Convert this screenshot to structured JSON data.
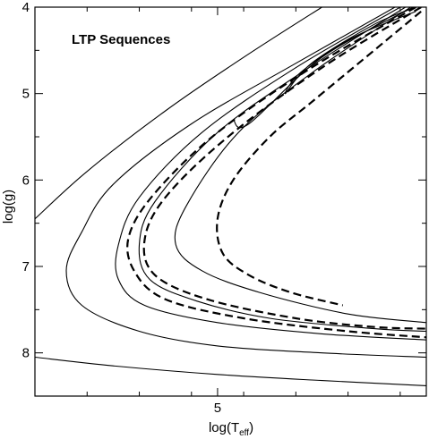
{
  "chart_data": {
    "type": "line",
    "title": "LTP Sequences",
    "xlabel": "log(T",
    "xlabel_sub": "eff",
    "xlabel_close": ")",
    "ylabel": "log(g)",
    "xlim": [
      4.65,
      5.4
    ],
    "ylim": [
      8.5,
      4.0
    ],
    "y_inverted": true,
    "x_ticks_major": [
      5.0
    ],
    "x_tick_labels": [
      "5"
    ],
    "x_ticks_minor": [
      4.75,
      4.85,
      4.95,
      5.05,
      5.15,
      5.25,
      5.35
    ],
    "y_ticks_major": [
      4,
      5,
      6,
      7,
      8
    ],
    "y_tick_labels": [
      "4",
      "5",
      "6",
      "7",
      "8"
    ],
    "y_ticks_minor": [
      4.5,
      5.5,
      6.5,
      7.5,
      8.5
    ],
    "grid": false,
    "legend": "none",
    "series": [
      {
        "style": "solid",
        "points": [
          [
            4.65,
            6.45
          ],
          [
            4.75,
            5.9
          ],
          [
            4.9,
            5.2
          ],
          [
            5.05,
            4.58
          ],
          [
            5.2,
            4.0
          ]
        ]
      },
      {
        "style": "solid",
        "points": [
          [
            4.65,
            8.05
          ],
          [
            4.8,
            8.15
          ],
          [
            5.0,
            8.25
          ],
          [
            5.2,
            8.32
          ],
          [
            5.4,
            8.38
          ]
        ]
      },
      {
        "style": "solid",
        "points": [
          [
            5.34,
            4.0
          ],
          [
            5.15,
            4.65
          ],
          [
            4.95,
            5.35
          ],
          [
            4.8,
            6.05
          ],
          [
            4.74,
            6.6
          ],
          [
            4.71,
            7.05
          ],
          [
            4.74,
            7.45
          ],
          [
            4.85,
            7.75
          ],
          [
            5.0,
            7.92
          ],
          [
            5.2,
            8.0
          ],
          [
            5.4,
            8.05
          ]
        ]
      },
      {
        "style": "solid",
        "points": [
          [
            5.35,
            4.0
          ],
          [
            5.15,
            4.7
          ],
          [
            4.97,
            5.45
          ],
          [
            4.85,
            6.2
          ],
          [
            4.81,
            6.75
          ],
          [
            4.81,
            7.15
          ],
          [
            4.86,
            7.45
          ],
          [
            5.0,
            7.65
          ],
          [
            5.2,
            7.78
          ],
          [
            5.4,
            7.85
          ]
        ]
      },
      {
        "style": "solid",
        "points": [
          [
            5.36,
            4.0
          ],
          [
            5.17,
            4.72
          ],
          [
            5.0,
            5.45
          ],
          [
            4.88,
            6.25
          ],
          [
            4.85,
            6.75
          ],
          [
            4.87,
            7.15
          ],
          [
            4.96,
            7.4
          ],
          [
            5.1,
            7.6
          ],
          [
            5.3,
            7.72
          ],
          [
            5.4,
            7.75
          ]
        ]
      },
      {
        "style": "solid",
        "points": [
          [
            5.37,
            4.0
          ],
          [
            5.19,
            4.72
          ],
          [
            5.04,
            5.45
          ],
          [
            4.94,
            6.3
          ],
          [
            4.92,
            6.75
          ],
          [
            4.97,
            7.05
          ],
          [
            5.08,
            7.3
          ],
          [
            5.25,
            7.55
          ],
          [
            5.4,
            7.65
          ]
        ]
      },
      {
        "style": "solid",
        "points": [
          [
            5.38,
            4.0
          ],
          [
            5.3,
            4.2
          ],
          [
            5.18,
            4.65
          ],
          [
            5.13,
            5.0
          ],
          [
            5.16,
            4.75
          ],
          [
            5.26,
            4.35
          ],
          [
            5.38,
            4.05
          ]
        ]
      },
      {
        "style": "solid",
        "points": [
          [
            5.375,
            4.0
          ],
          [
            5.2,
            4.58
          ],
          [
            5.06,
            5.35
          ],
          [
            5.03,
            5.3
          ]
        ]
      },
      {
        "style": "dashed",
        "points": [
          [
            5.38,
            4.0
          ],
          [
            5.18,
            4.7
          ],
          [
            5.0,
            5.45
          ],
          [
            4.88,
            6.15
          ],
          [
            4.83,
            6.65
          ],
          [
            4.84,
            7.05
          ],
          [
            4.9,
            7.38
          ],
          [
            5.05,
            7.6
          ],
          [
            5.25,
            7.75
          ],
          [
            5.4,
            7.82
          ]
        ]
      },
      {
        "style": "dashed",
        "points": [
          [
            5.39,
            4.0
          ],
          [
            5.2,
            4.7
          ],
          [
            5.02,
            5.5
          ],
          [
            4.9,
            6.2
          ],
          [
            4.86,
            6.7
          ],
          [
            4.88,
            7.1
          ],
          [
            4.98,
            7.38
          ],
          [
            5.15,
            7.6
          ],
          [
            5.3,
            7.7
          ],
          [
            5.4,
            7.72
          ]
        ]
      },
      {
        "style": "dashed",
        "points": [
          [
            5.39,
            4.05
          ],
          [
            5.33,
            4.35
          ],
          [
            5.27,
            4.65
          ],
          [
            5.18,
            5.1
          ],
          [
            5.1,
            5.5
          ],
          [
            5.03,
            6.0
          ],
          [
            5.0,
            6.45
          ],
          [
            5.01,
            6.85
          ],
          [
            5.06,
            7.1
          ],
          [
            5.14,
            7.3
          ],
          [
            5.24,
            7.45
          ]
        ]
      }
    ]
  }
}
